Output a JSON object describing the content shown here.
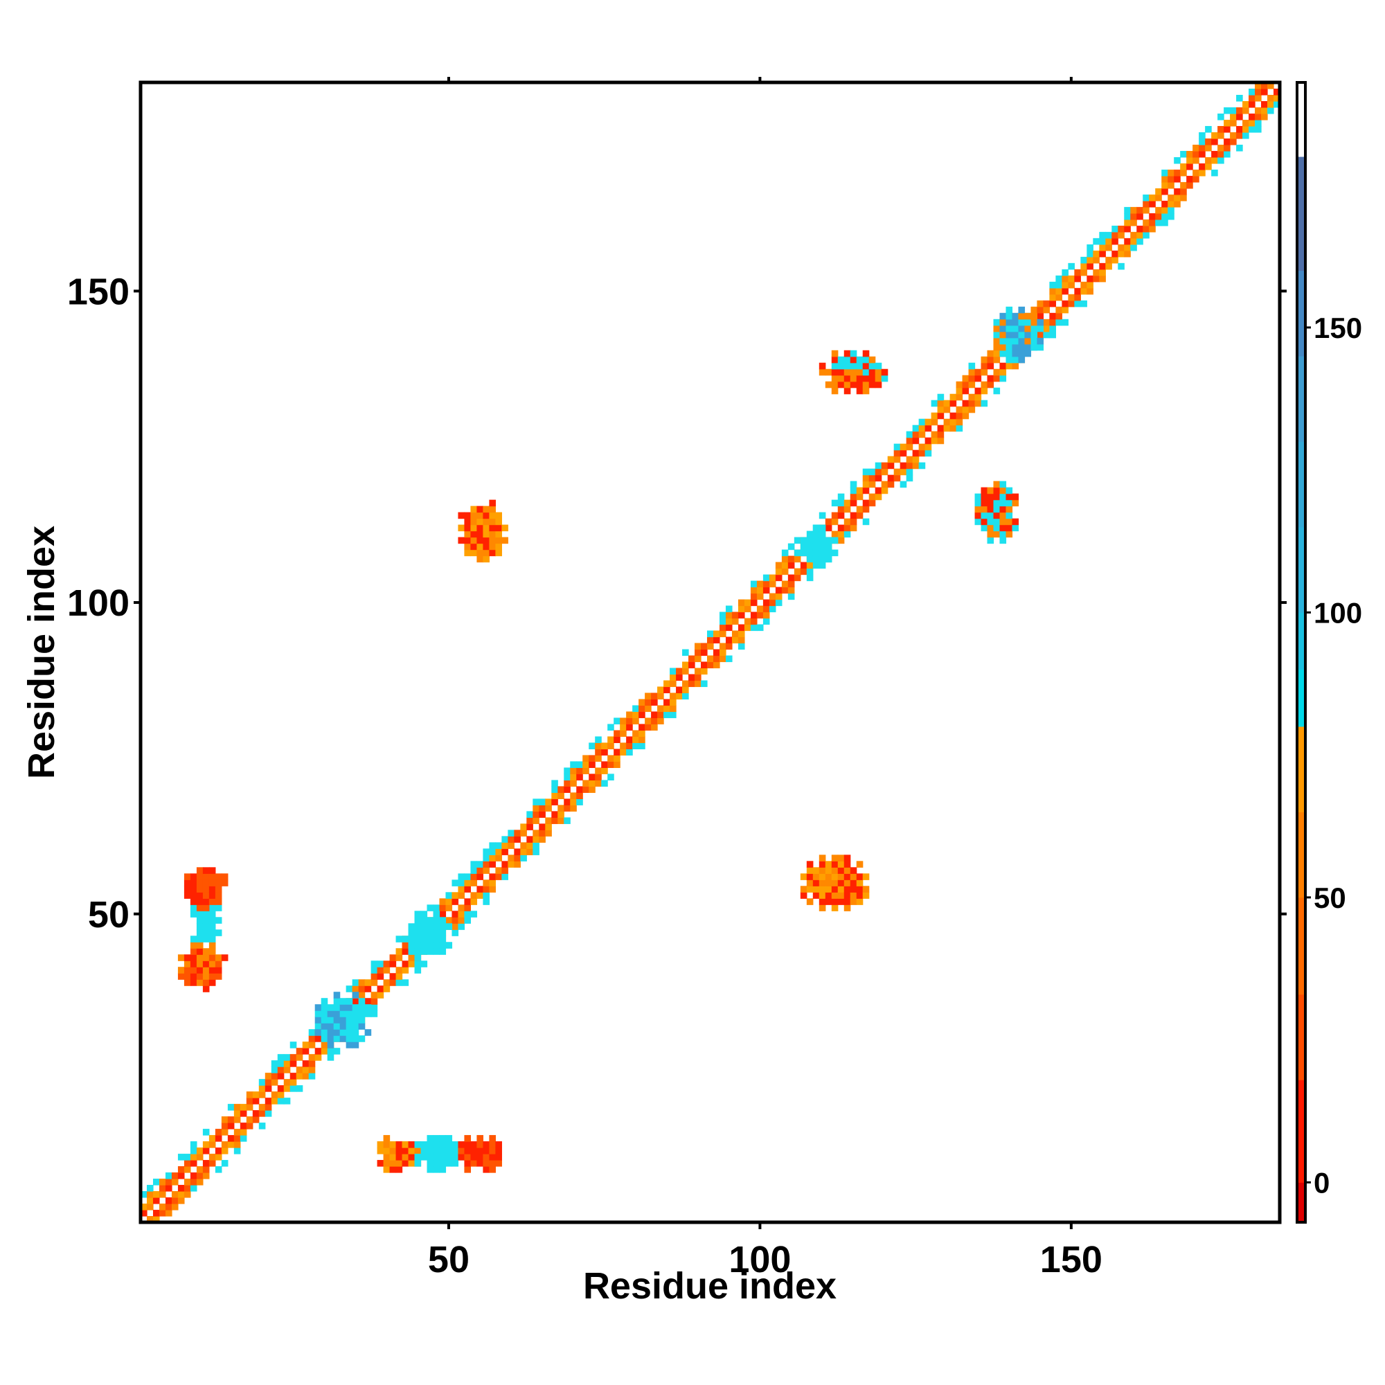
{
  "chart_data": {
    "type": "heatmap",
    "title": "",
    "xlabel": "Residue index",
    "ylabel": "Residue index",
    "xlim": [
      1,
      183
    ],
    "ylim": [
      1,
      183
    ],
    "xticks": [
      50,
      100,
      150
    ],
    "yticks": [
      50,
      100,
      150
    ],
    "xtick_labels": [
      "50",
      "100",
      "150"
    ],
    "ytick_labels": [
      "50",
      "100",
      "150"
    ],
    "grid": false,
    "colorbar": {
      "range": [
        -7,
        193
      ],
      "ticks": [
        0,
        50,
        100,
        150
      ],
      "tick_labels": [
        "0",
        "50",
        "100",
        "150"
      ],
      "bands": [
        {
          "from": -7,
          "to": 0,
          "color": "#dd0000"
        },
        {
          "from": 0,
          "to": 18,
          "color": "#ff1a00"
        },
        {
          "from": 18,
          "to": 33,
          "color": "#ff4d00"
        },
        {
          "from": 33,
          "to": 50,
          "color": "#ff6a00"
        },
        {
          "from": 50,
          "to": 65,
          "color": "#ff7f00"
        },
        {
          "from": 65,
          "to": 80,
          "color": "#ff9900"
        },
        {
          "from": 80,
          "to": 90,
          "color": "#00d8e8"
        },
        {
          "from": 90,
          "to": 100,
          "color": "#1ac0e0"
        },
        {
          "from": 100,
          "to": 115,
          "color": "#2ab2dc"
        },
        {
          "from": 115,
          "to": 130,
          "color": "#33a8d6"
        },
        {
          "from": 130,
          "to": 145,
          "color": "#3e9cd0"
        },
        {
          "from": 145,
          "to": 160,
          "color": "#4488c4"
        },
        {
          "from": 160,
          "to": 180,
          "color": "#4f6fa8"
        },
        {
          "from": 180,
          "to": 193,
          "color": "#ffffff"
        }
      ]
    },
    "palette": {
      "red": "#ff2200",
      "dark_red": "#e80000",
      "orange_red": "#ff5500",
      "orange": "#ff8800",
      "light_orange": "#ffa000",
      "cyan": "#1ee0ee",
      "blue": "#3aa0d8"
    },
    "features": [
      {
        "kind": "diagonal_band",
        "from": 1,
        "to": 183,
        "colors": [
          "red",
          "orange",
          "cyan"
        ]
      },
      {
        "kind": "cluster",
        "x": [
          39,
          45
        ],
        "y": [
          9,
          14
        ],
        "colors": [
          "orange",
          "red",
          "light_orange"
        ]
      },
      {
        "kind": "cluster",
        "x": [
          45,
          52
        ],
        "y": [
          9,
          14
        ],
        "colors": [
          "cyan"
        ]
      },
      {
        "kind": "cluster",
        "x": [
          52,
          58
        ],
        "y": [
          9,
          14
        ],
        "colors": [
          "red",
          "orange_red"
        ]
      },
      {
        "kind": "cluster",
        "x": [
          7,
          14
        ],
        "y": [
          38,
          45
        ],
        "colors": [
          "red",
          "orange",
          "orange_red"
        ]
      },
      {
        "kind": "cluster",
        "x": [
          9,
          13
        ],
        "y": [
          45,
          52
        ],
        "colors": [
          "cyan"
        ]
      },
      {
        "kind": "cluster",
        "x": [
          8,
          14
        ],
        "y": [
          51,
          58
        ],
        "colors": [
          "red",
          "orange_red"
        ]
      },
      {
        "kind": "cluster",
        "x": [
          52,
          59
        ],
        "y": [
          107,
          116
        ],
        "colors": [
          "red",
          "orange",
          "light_orange"
        ]
      },
      {
        "kind": "cluster",
        "x": [
          107,
          117
        ],
        "y": [
          51,
          59
        ],
        "colors": [
          "red",
          "orange",
          "light_orange"
        ]
      },
      {
        "kind": "cluster",
        "x": [
          135,
          141
        ],
        "y": [
          110,
          119
        ],
        "colors": [
          "orange",
          "red",
          "cyan"
        ]
      },
      {
        "kind": "cluster",
        "x": [
          110,
          120
        ],
        "y": [
          134,
          140
        ],
        "colors": [
          "red",
          "orange",
          "cyan"
        ]
      },
      {
        "kind": "cluster",
        "x": [
          138,
          145
        ],
        "y": [
          139,
          147
        ],
        "colors": [
          "blue",
          "cyan",
          "orange"
        ]
      },
      {
        "kind": "cluster",
        "x": [
          29,
          37
        ],
        "y": [
          29,
          37
        ],
        "colors": [
          "blue",
          "cyan"
        ]
      },
      {
        "kind": "cluster",
        "x": [
          106,
          112
        ],
        "y": [
          106,
          112
        ],
        "colors": [
          "cyan"
        ]
      },
      {
        "kind": "cluster",
        "x": [
          43,
          50
        ],
        "y": [
          43,
          50
        ],
        "colors": [
          "cyan"
        ]
      }
    ]
  }
}
